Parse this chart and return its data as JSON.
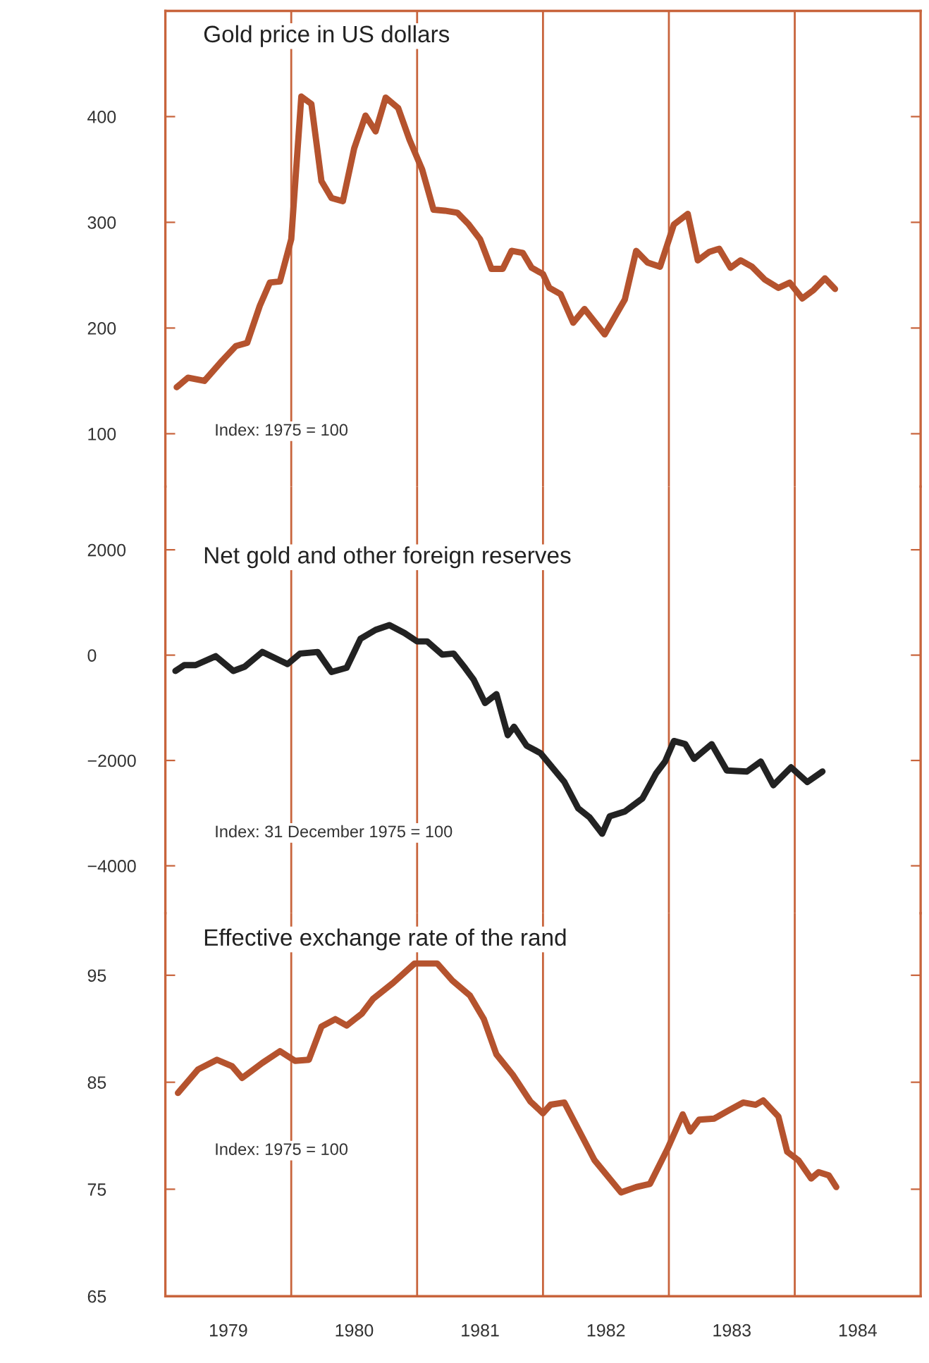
{
  "chart_data": [
    {
      "type": "line",
      "title": "Gold price in US dollars",
      "annotations": [
        "Index: 1975 = 100"
      ],
      "xlim": [
        1979,
        1985
      ],
      "ylim": [
        50,
        500
      ],
      "yticks": [
        100,
        200,
        300,
        400
      ],
      "tick_labels": "y",
      "ref_lines": [
        {
          "axis": "x",
          "value": 1980,
          "color": "#c8643c"
        },
        {
          "axis": "x",
          "value": 1981,
          "color": "#c8643c"
        },
        {
          "axis": "x",
          "value": 1982,
          "color": "#c8643c"
        },
        {
          "axis": "x",
          "value": 1983,
          "color": "#c8643c"
        },
        {
          "axis": "x",
          "value": 1984,
          "color": "#c8643c"
        }
      ],
      "series": [
        {
          "color": "#b5532e",
          "x": [
            1979.09,
            1979.18,
            1979.31,
            1979.45,
            1979.56,
            1979.65,
            1979.75,
            1979.83,
            1979.91,
            1980.0,
            1980.08,
            1980.16,
            1980.24,
            1980.32,
            1980.41,
            1980.5,
            1980.59,
            1980.67,
            1980.75,
            1980.85,
            1980.94,
            1981.04,
            1981.13,
            1981.22,
            1981.32,
            1981.41,
            1981.5,
            1981.59,
            1981.68,
            1981.75,
            1981.84,
            1981.91,
            1982.0,
            1982.05,
            1982.14,
            1982.24,
            1982.33,
            1982.49,
            1982.65,
            1982.74,
            1982.83,
            1982.93,
            1983.04,
            1983.15,
            1983.23,
            1983.32,
            1983.4,
            1983.49,
            1983.57,
            1983.66,
            1983.76,
            1983.87,
            1983.96,
            1984.06,
            1984.15,
            1984.24,
            1984.32
          ],
          "values": [
            144,
            153,
            150,
            169,
            183,
            186,
            221,
            243,
            244,
            284,
            419,
            412,
            339,
            323,
            320,
            370,
            401,
            386,
            418,
            408,
            378,
            350,
            312,
            311,
            309,
            298,
            284,
            256,
            256,
            273,
            271,
            257,
            251,
            238,
            232,
            205,
            218,
            194,
            227,
            273,
            262,
            258,
            298,
            308,
            264,
            272,
            275,
            257,
            264,
            258,
            246,
            238,
            243,
            228,
            236,
            247,
            237
          ]
        }
      ]
    },
    {
      "type": "line",
      "title": "Net gold and other foreign reserves",
      "annotations": [
        "Index: 31 December 1975 = 100"
      ],
      "xlim": [
        1979,
        1985
      ],
      "ylim": [
        -4900,
        3200
      ],
      "yticks": [
        {
          "value": -4000,
          "label": "−4000"
        },
        {
          "value": -2000,
          "label": "−2000"
        },
        0,
        2000
      ],
      "tick_labels": "y",
      "ref_lines": [
        {
          "axis": "x",
          "value": 1980,
          "color": "#c8643c"
        },
        {
          "axis": "x",
          "value": 1981,
          "color": "#c8643c"
        },
        {
          "axis": "x",
          "value": 1982,
          "color": "#c8643c"
        },
        {
          "axis": "x",
          "value": 1983,
          "color": "#c8643c"
        },
        {
          "axis": "x",
          "value": 1984,
          "color": "#c8643c"
        }
      ],
      "series": [
        {
          "color": "#222222",
          "x": [
            1979.08,
            1979.15,
            1979.24,
            1979.4,
            1979.54,
            1979.63,
            1979.77,
            1979.97,
            1980.07,
            1980.21,
            1980.32,
            1980.44,
            1980.55,
            1980.67,
            1980.78,
            1980.9,
            1981.0,
            1981.08,
            1981.2,
            1981.29,
            1981.38,
            1981.45,
            1981.54,
            1981.63,
            1981.72,
            1981.77,
            1981.87,
            1981.98,
            1982.17,
            1982.28,
            1982.37,
            1982.47,
            1982.53,
            1982.65,
            1982.79,
            1982.9,
            1982.97,
            1983.04,
            1983.13,
            1983.2,
            1983.34,
            1983.46,
            1983.62,
            1983.73,
            1983.83,
            1983.97,
            1984.1,
            1984.22
          ],
          "values": [
            -300,
            -190,
            -190,
            -20,
            -300,
            -220,
            60,
            -170,
            30,
            60,
            -320,
            -240,
            310,
            480,
            570,
            420,
            260,
            260,
            10,
            30,
            -240,
            -470,
            -910,
            -740,
            -1520,
            -1360,
            -1720,
            -1860,
            -2410,
            -2910,
            -3080,
            -3390,
            -3060,
            -2970,
            -2720,
            -2240,
            -2020,
            -1630,
            -1690,
            -1970,
            -1690,
            -2190,
            -2210,
            -2020,
            -2470,
            -2130,
            -2410,
            -2210
          ]
        }
      ]
    },
    {
      "type": "line",
      "title": "Effective exchange rate of the rand",
      "annotations": [
        "Index: 1975 = 100"
      ],
      "xlim": [
        1979,
        1985
      ],
      "xticks": [
        {
          "value": 1979.5,
          "label": "1979"
        },
        {
          "value": 1980.5,
          "label": "1980"
        },
        {
          "value": 1981.5,
          "label": "1981"
        },
        {
          "value": 1982.5,
          "label": "1982"
        },
        {
          "value": 1983.5,
          "label": "1983"
        },
        {
          "value": 1984.5,
          "label": "1984"
        }
      ],
      "ylim": [
        65,
        100.8
      ],
      "yticks": [
        65,
        75,
        85,
        95
      ],
      "ref_lines": [
        {
          "axis": "x",
          "value": 1980,
          "color": "#c8643c"
        },
        {
          "axis": "x",
          "value": 1981,
          "color": "#c8643c"
        },
        {
          "axis": "x",
          "value": 1982,
          "color": "#c8643c"
        },
        {
          "axis": "x",
          "value": 1983,
          "color": "#c8643c"
        },
        {
          "axis": "x",
          "value": 1984,
          "color": "#c8643c"
        }
      ],
      "series": [
        {
          "color": "#b5532e",
          "x": [
            1979.1,
            1979.26,
            1979.41,
            1979.53,
            1979.61,
            1979.77,
            1979.91,
            1980.03,
            1980.14,
            1980.24,
            1980.35,
            1980.44,
            1980.56,
            1980.65,
            1980.81,
            1980.98,
            1981.16,
            1981.28,
            1981.42,
            1981.53,
            1981.63,
            1981.76,
            1981.9,
            1982.0,
            1982.06,
            1982.17,
            1982.41,
            1982.62,
            1982.74,
            1982.85,
            1982.99,
            1983.11,
            1983.17,
            1983.24,
            1983.36,
            1983.48,
            1983.59,
            1983.69,
            1983.75,
            1983.87,
            1983.94,
            1984.03,
            1984.13,
            1984.19,
            1984.27,
            1984.33
          ],
          "values": [
            84.0,
            86.2,
            87.1,
            86.5,
            85.4,
            86.8,
            87.9,
            87.0,
            87.1,
            90.2,
            90.9,
            90.3,
            91.4,
            92.8,
            94.3,
            96.1,
            96.1,
            94.5,
            93.1,
            90.9,
            87.6,
            85.7,
            83.2,
            82.1,
            82.9,
            83.1,
            77.7,
            74.7,
            75.2,
            75.5,
            78.8,
            82.0,
            80.4,
            81.5,
            81.6,
            82.4,
            83.1,
            82.9,
            83.3,
            81.8,
            78.5,
            77.7,
            76.0,
            76.6,
            76.3,
            75.2
          ]
        }
      ]
    }
  ]
}
